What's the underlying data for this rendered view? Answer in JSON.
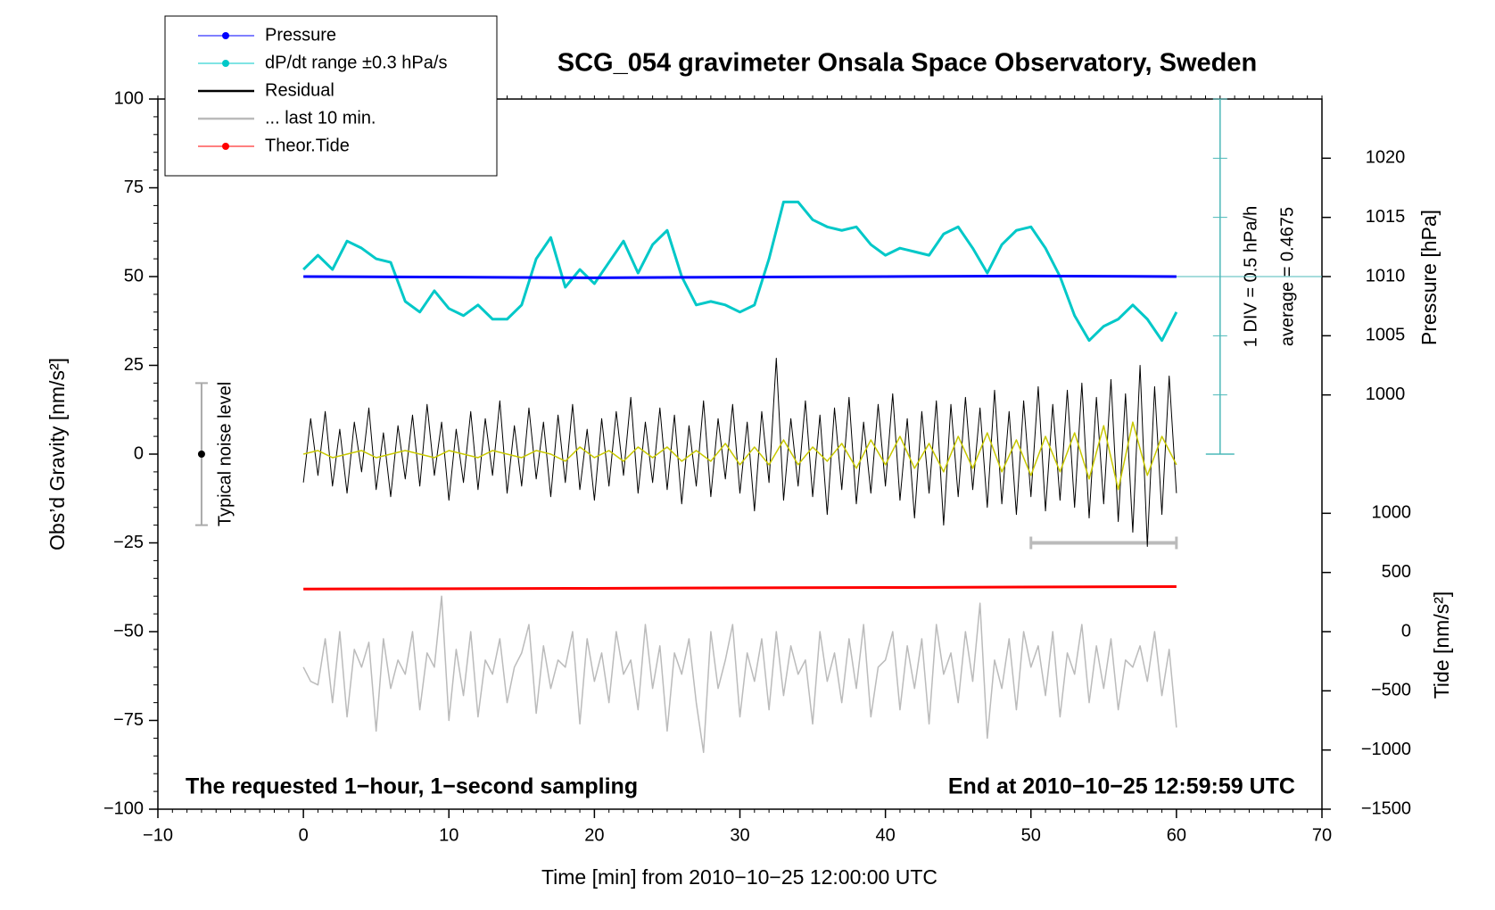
{
  "chart_data": {
    "type": "line",
    "title": "SCG_054 gravimeter Onsala Space Observatory, Sweden",
    "x_label": "Time [min] from 2010−10−25 12:00:00 UTC",
    "y_label": "Obs’d Gravity [nm/s²]",
    "y2_label": "Pressure [hPa]",
    "y3_label": "Tide [nm/s²]",
    "annotations": [
      "The requested 1−hour, 1−second sampling",
      "End at 2010−10−25 12:59:59 UTC",
      "Typical noise level",
      "1 DIV = 0.5 hPa/h",
      "average = 0.4675"
    ],
    "xlim": [
      -10,
      70
    ],
    "xticks": [
      {
        "value": -10,
        "label": "−10"
      },
      0,
      10,
      20,
      30,
      40,
      50,
      60,
      70
    ],
    "ylim": [
      -100,
      100
    ],
    "yticks": [
      {
        "value": -100,
        "label": "−100"
      },
      {
        "value": -75,
        "label": "−75"
      },
      {
        "value": -50,
        "label": "−50"
      },
      {
        "value": -25,
        "label": "−25"
      },
      0,
      25,
      50,
      75,
      100
    ],
    "y2lim": [
      965,
      1025
    ],
    "y2ticks": [
      1000,
      1005,
      1010,
      1015,
      1020
    ],
    "y3lim": [
      -1500,
      4500
    ],
    "y3ticks": [
      {
        "value": -1500,
        "label": "−1500"
      },
      {
        "value": -1000,
        "label": "−1000"
      },
      {
        "value": -500,
        "label": "−500"
      },
      0,
      500,
      1000
    ],
    "noise_bar": {
      "x": -7,
      "low": -20,
      "high": 20,
      "center": 0
    },
    "last_window_bar": {
      "from": 50,
      "to": 60,
      "y": -25
    },
    "series": [
      {
        "name": "Pressure",
        "color": "#0000ff",
        "legend_dot": true,
        "axis": "y2",
        "x": [
          0,
          10,
          20,
          30,
          40,
          50,
          60
        ],
        "values": [
          1010.0,
          1009.95,
          1009.9,
          1009.95,
          1010.0,
          1010.05,
          1010.0
        ]
      },
      {
        "name": "dP/dt range ±0.3 hPa/s",
        "color": "#00c8c8",
        "legend_dot": true,
        "x": [
          0,
          1,
          2,
          3,
          4,
          5,
          6,
          7,
          8,
          9,
          10,
          11,
          12,
          13,
          14,
          15,
          16,
          17,
          18,
          19,
          20,
          21,
          22,
          23,
          24,
          25,
          26,
          27,
          28,
          29,
          30,
          31,
          32,
          33,
          34,
          35,
          36,
          37,
          38,
          39,
          40,
          41,
          42,
          43,
          44,
          45,
          46,
          47,
          48,
          49,
          50,
          51,
          52,
          53,
          54,
          55,
          56,
          57,
          58,
          59,
          60
        ],
        "values": [
          52,
          56,
          52,
          60,
          58,
          55,
          54,
          43,
          40,
          46,
          41,
          39,
          42,
          38,
          38,
          42,
          55,
          61,
          47,
          52,
          48,
          54,
          60,
          51,
          59,
          63,
          50,
          42,
          43,
          42,
          40,
          42,
          55,
          71,
          71,
          66,
          64,
          63,
          64,
          59,
          56,
          58,
          57,
          56,
          62,
          64,
          58,
          51,
          59,
          63,
          64,
          58,
          50,
          39,
          32,
          36,
          38,
          42,
          38,
          32,
          40
        ]
      },
      {
        "name": "Residual",
        "color": "#000000",
        "legend_dot": false,
        "x": [
          0,
          0.5,
          1,
          1.5,
          2,
          2.5,
          3,
          3.5,
          4,
          4.5,
          5,
          5.5,
          6,
          6.5,
          7,
          7.5,
          8,
          8.5,
          9,
          9.5,
          10,
          10.5,
          11,
          11.5,
          12,
          12.5,
          13,
          13.5,
          14,
          14.5,
          15,
          15.5,
          16,
          16.5,
          17,
          17.5,
          18,
          18.5,
          19,
          19.5,
          20,
          20.5,
          21,
          21.5,
          22,
          22.5,
          23,
          23.5,
          24,
          24.5,
          25,
          25.5,
          26,
          26.5,
          27,
          27.5,
          28,
          28.5,
          29,
          29.5,
          30,
          30.5,
          31,
          31.5,
          32,
          32.5,
          33,
          33.5,
          34,
          34.5,
          35,
          35.5,
          36,
          36.5,
          37,
          37.5,
          38,
          38.5,
          39,
          39.5,
          40,
          40.5,
          41,
          41.5,
          42,
          42.5,
          43,
          43.5,
          44,
          44.5,
          45,
          45.5,
          46,
          46.5,
          47,
          47.5,
          48,
          48.5,
          49,
          49.5,
          50,
          50.5,
          51,
          51.5,
          52,
          52.5,
          53,
          53.5,
          54,
          54.5,
          55,
          55.5,
          56,
          56.5,
          57,
          57.5,
          58,
          58.5,
          59,
          59.5,
          60
        ],
        "values": [
          -8,
          10,
          -6,
          12,
          -9,
          7,
          -11,
          9,
          -5,
          13,
          -10,
          6,
          -12,
          8,
          -7,
          11,
          -9,
          14,
          -6,
          9,
          -13,
          7,
          -8,
          12,
          -10,
          10,
          -6,
          15,
          -11,
          8,
          -9,
          13,
          -7,
          9,
          -12,
          11,
          -8,
          14,
          -10,
          7,
          -13,
          10,
          -9,
          12,
          -6,
          16,
          -11,
          9,
          -8,
          13,
          -10,
          11,
          -14,
          8,
          -9,
          15,
          -12,
          10,
          -7,
          14,
          -11,
          9,
          -16,
          12,
          -8,
          27,
          -13,
          10,
          -9,
          15,
          -12,
          11,
          -17,
          13,
          -10,
          16,
          -14,
          9,
          -11,
          14,
          -9,
          17,
          -13,
          10,
          -18,
          12,
          -11,
          15,
          -20,
          14,
          -12,
          16,
          -10,
          13,
          -15,
          18,
          -14,
          12,
          -17,
          15,
          -12,
          19,
          -16,
          14,
          -13,
          18,
          -15,
          20,
          -18,
          16,
          -14,
          21,
          -19,
          17,
          -22,
          25,
          -26,
          19,
          -17,
          22,
          -11
        ]
      },
      {
        "name": "... last 10 min.",
        "color": "#bbbbbb",
        "legend_dot": false,
        "x": [
          0,
          0.5,
          1,
          1.5,
          2,
          2.5,
          3,
          3.5,
          4,
          4.5,
          5,
          5.5,
          6,
          6.5,
          7,
          7.5,
          8,
          8.5,
          9,
          9.5,
          10,
          10.5,
          11,
          11.5,
          12,
          12.5,
          13,
          13.5,
          14,
          14.5,
          15,
          15.5,
          16,
          16.5,
          17,
          17.5,
          18,
          18.5,
          19,
          19.5,
          20,
          20.5,
          21,
          21.5,
          22,
          22.5,
          23,
          23.5,
          24,
          24.5,
          25,
          25.5,
          26,
          26.5,
          27,
          27.5,
          28,
          28.5,
          29,
          29.5,
          30,
          30.5,
          31,
          31.5,
          32,
          32.5,
          33,
          33.5,
          34,
          34.5,
          35,
          35.5,
          36,
          36.5,
          37,
          37.5,
          38,
          38.5,
          39,
          39.5,
          40,
          40.5,
          41,
          41.5,
          42,
          42.5,
          43,
          43.5,
          44,
          44.5,
          45,
          45.5,
          46,
          46.5,
          47,
          47.5,
          48,
          48.5,
          49,
          49.5,
          50,
          50.5,
          51,
          51.5,
          52,
          52.5,
          53,
          53.5,
          54,
          54.5,
          55,
          55.5,
          56,
          56.5,
          57,
          57.5,
          58,
          58.5,
          59,
          59.5,
          60
        ],
        "values": [
          -60,
          -64,
          -65,
          -52,
          -70,
          -50,
          -74,
          -55,
          -60,
          -53,
          -78,
          -52,
          -66,
          -58,
          -62,
          -50,
          -72,
          -56,
          -60,
          -40,
          -75,
          -55,
          -68,
          -50,
          -74,
          -58,
          -62,
          -52,
          -70,
          -60,
          -56,
          -48,
          -73,
          -54,
          -66,
          -58,
          -60,
          -50,
          -76,
          -52,
          -64,
          -56,
          -70,
          -50,
          -62,
          -58,
          -72,
          -48,
          -66,
          -54,
          -78,
          -56,
          -62,
          -52,
          -70,
          -84,
          -50,
          -66,
          -58,
          -48,
          -74,
          -56,
          -64,
          -52,
          -72,
          -50,
          -68,
          -54,
          -62,
          -58,
          -76,
          -50,
          -64,
          -56,
          -70,
          -52,
          -66,
          -48,
          -74,
          -60,
          -58,
          -50,
          -72,
          -54,
          -66,
          -52,
          -76,
          -48,
          -62,
          -56,
          -70,
          -50,
          -64,
          -42,
          -80,
          -58,
          -66,
          -52,
          -72,
          -50,
          -60,
          -54,
          -68,
          -50,
          -74,
          -56,
          -62,
          -48,
          -70,
          -54,
          -66,
          -52,
          -72,
          -58,
          -60,
          -54,
          -64,
          -50,
          -68,
          -55,
          -77
        ]
      },
      {
        "name": "Theor.Tide",
        "color": "#ff0000",
        "legend_dot": true,
        "axis": "y3",
        "x": [
          0,
          20,
          40,
          60
        ],
        "values": [
          360,
          366,
          373,
          381
        ]
      },
      {
        "color": "#c8c800",
        "x": [
          0,
          1,
          2,
          3,
          4,
          5,
          6,
          7,
          8,
          9,
          10,
          11,
          12,
          13,
          14,
          15,
          16,
          17,
          18,
          19,
          20,
          21,
          22,
          23,
          24,
          25,
          26,
          27,
          28,
          29,
          30,
          31,
          32,
          33,
          34,
          35,
          36,
          37,
          38,
          39,
          40,
          41,
          42,
          43,
          44,
          45,
          46,
          47,
          48,
          49,
          50,
          51,
          52,
          53,
          54,
          55,
          56,
          57,
          58,
          59,
          60
        ],
        "values": [
          0,
          1,
          -1,
          0,
          1,
          -1,
          0,
          1,
          0,
          -1,
          1,
          0,
          -1,
          1,
          0,
          -1,
          1,
          0,
          -2,
          2,
          -1,
          1,
          -2,
          2,
          -1,
          2,
          -2,
          1,
          -2,
          3,
          -3,
          2,
          -3,
          4,
          -3,
          2,
          -2,
          3,
          -4,
          4,
          -3,
          5,
          -4,
          3,
          -5,
          5,
          -4,
          6,
          -5,
          4,
          -6,
          5,
          -5,
          6,
          -7,
          8,
          -10,
          9,
          -6,
          5,
          -3
        ]
      }
    ]
  }
}
